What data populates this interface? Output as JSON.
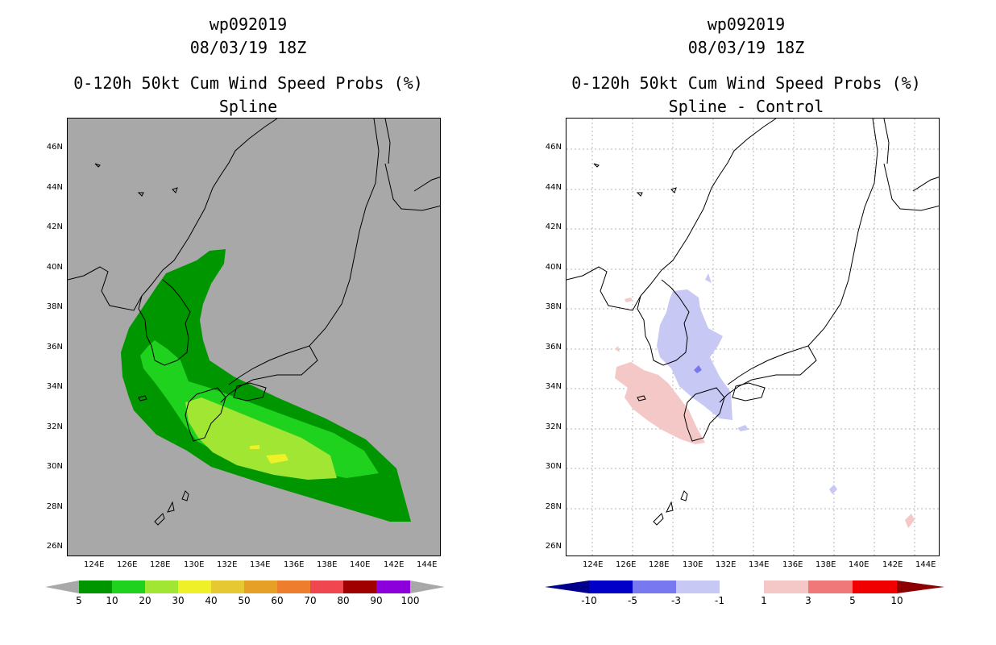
{
  "left_panel": {
    "title_line1": "wp092019",
    "title_line2": "08/03/19 18Z",
    "title_line3": "0-120h 50kt Cum Wind Speed Probs (%)",
    "title_line4": "Spline",
    "background_color": "#a8a8a8"
  },
  "right_panel": {
    "title_line1": "wp092019",
    "title_line2": "08/03/19 18Z",
    "title_line3": "0-120h 50kt Cum Wind Speed Probs (%)",
    "title_line4": "Spline - Control",
    "background_color": "#ffffff"
  },
  "axes": {
    "lon_labels": [
      "124E",
      "126E",
      "128E",
      "130E",
      "132E",
      "134E",
      "136E",
      "138E",
      "140E",
      "142E",
      "144E"
    ],
    "lat_labels": [
      "46N",
      "44N",
      "42N",
      "40N",
      "38N",
      "36N",
      "34N",
      "32N",
      "30N",
      "28N",
      "26N"
    ]
  },
  "left_colorbar": {
    "labels": [
      "5",
      "10",
      "20",
      "30",
      "40",
      "50",
      "60",
      "70",
      "80",
      "90",
      "100"
    ],
    "colors": [
      "#009600",
      "#1ed21e",
      "#a0e632",
      "#f0f028",
      "#e6c832",
      "#e6a028",
      "#ef7d2e",
      "#f04650",
      "#a00000",
      "#8c00dc"
    ],
    "end_color": "#a8a8a8"
  },
  "right_colorbar": {
    "labels": [
      "-10",
      "-5",
      "-3",
      "-1",
      "1",
      "3",
      "5",
      "10"
    ],
    "colors": [
      "#0000c8",
      "#7878f0",
      "#c8c8f5",
      "#ffffff",
      "#f5c8c8",
      "#f07878",
      "#f00000"
    ],
    "low_end_color": "#00008c",
    "high_end_color": "#8c0000"
  }
}
